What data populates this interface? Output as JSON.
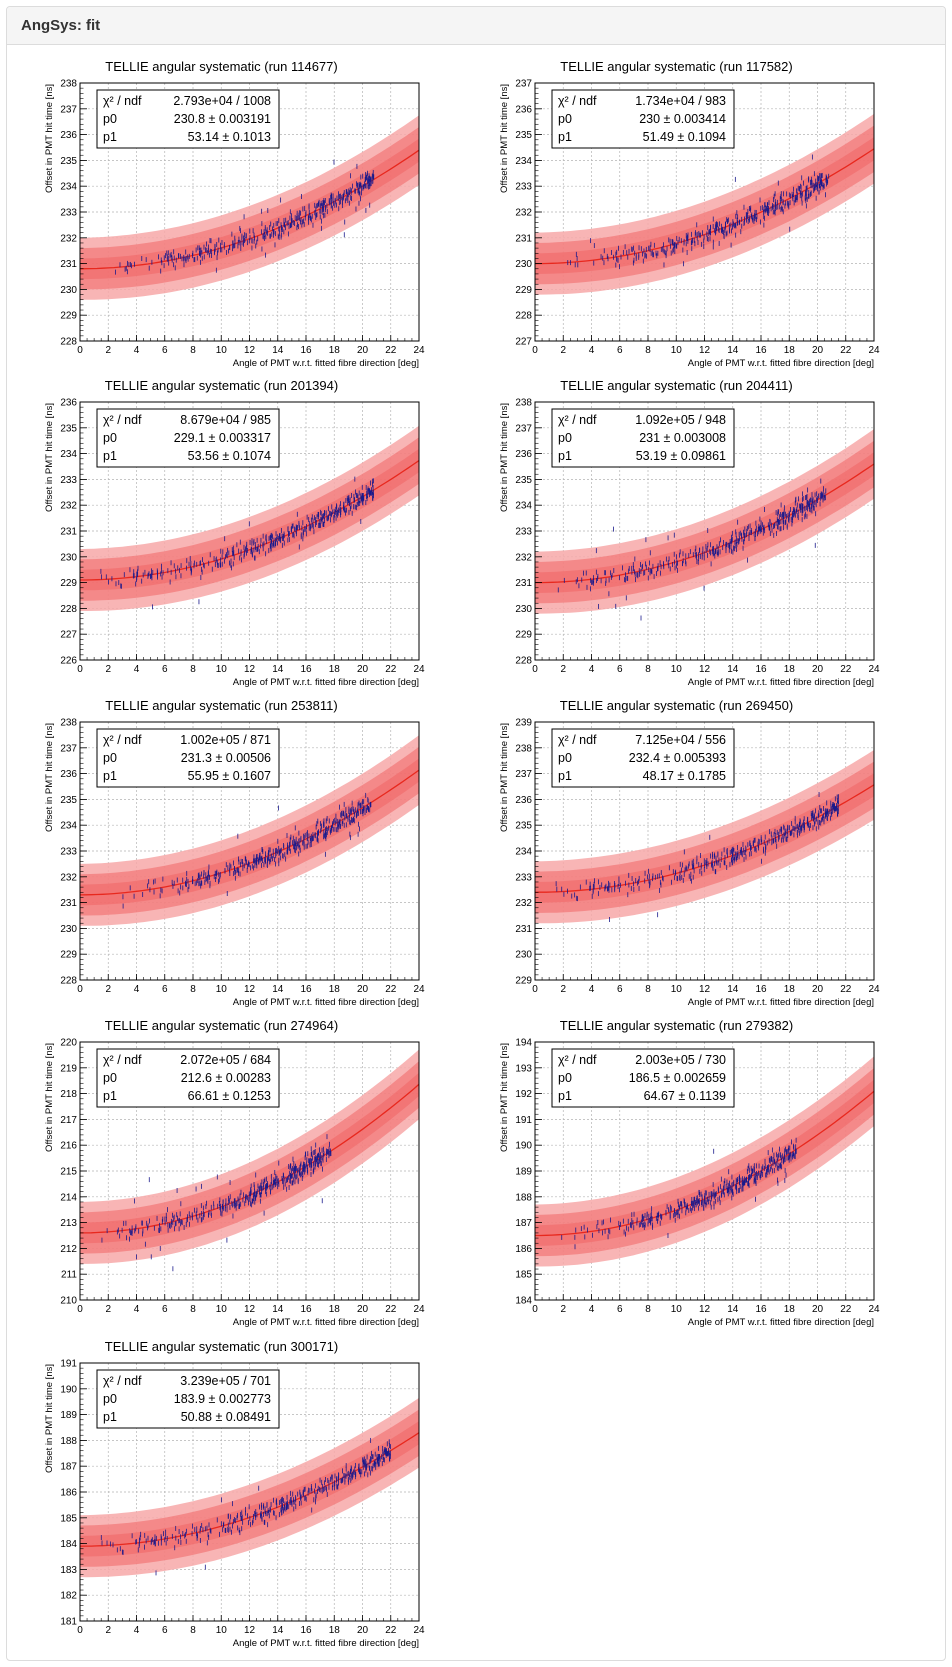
{
  "panel": {
    "title": "AngSys: fit"
  },
  "chart_data": [
    {
      "type": "scatter",
      "title": "TELLIE angular systematic (run 114677)",
      "xlabel": "Angle of PMT w.r.t. fitted fibre direction [deg]",
      "ylabel": "Offset in PMT hit time [ns]",
      "xlim": [
        0,
        24
      ],
      "ylim": [
        228,
        238
      ],
      "xticks": [
        0,
        2,
        4,
        6,
        8,
        10,
        12,
        14,
        16,
        18,
        20,
        22,
        24
      ],
      "yticks": [
        228,
        229,
        230,
        231,
        232,
        233,
        234,
        235,
        236,
        237,
        238
      ],
      "grid": true,
      "legend_position": "top-left",
      "stats": {
        "chi2_label": "χ² / ndf",
        "chi2_value": "2.793e+04 / 1008",
        "p0_label": "p0",
        "p0_value": "230.8 ± 0.003191",
        "p1_label": "p1",
        "p1_value": "53.14 ± 0.1013"
      },
      "fit": {
        "p0": 230.8,
        "p1": 53.14
      },
      "x_data_max": 20.8
    },
    {
      "type": "scatter",
      "title": "TELLIE angular systematic (run 117582)",
      "xlabel": "Angle of PMT w.r.t. fitted fibre direction [deg]",
      "ylabel": "Offset in PMT hit time [ns]",
      "xlim": [
        0,
        24
      ],
      "ylim": [
        227,
        237
      ],
      "xticks": [
        0,
        2,
        4,
        6,
        8,
        10,
        12,
        14,
        16,
        18,
        20,
        22,
        24
      ],
      "yticks": [
        227,
        228,
        229,
        230,
        231,
        232,
        233,
        234,
        235,
        236,
        237
      ],
      "grid": true,
      "legend_position": "top-left",
      "stats": {
        "chi2_label": "χ² / ndf",
        "chi2_value": "1.734e+04 / 983",
        "p0_label": "p0",
        "p0_value": "230 ± 0.003414",
        "p1_label": "p1",
        "p1_value": "51.49 ± 0.1094"
      },
      "fit": {
        "p0": 230,
        "p1": 51.49
      },
      "x_data_max": 20.8
    },
    {
      "type": "scatter",
      "title": "TELLIE angular systematic (run 201394)",
      "xlabel": "Angle of PMT w.r.t. fitted fibre direction [deg]",
      "ylabel": "Offset in PMT hit time [ns]",
      "xlim": [
        0,
        24
      ],
      "ylim": [
        226,
        236
      ],
      "xticks": [
        0,
        2,
        4,
        6,
        8,
        10,
        12,
        14,
        16,
        18,
        20,
        22,
        24
      ],
      "yticks": [
        226,
        227,
        228,
        229,
        230,
        231,
        232,
        233,
        234,
        235,
        236
      ],
      "grid": true,
      "legend_position": "top-left",
      "stats": {
        "chi2_label": "χ² / ndf",
        "chi2_value": "8.679e+04 / 985",
        "p0_label": "p0",
        "p0_value": "229.1 ± 0.003317",
        "p1_label": "p1",
        "p1_value": "53.56 ± 0.1074"
      },
      "fit": {
        "p0": 229.1,
        "p1": 53.56
      },
      "x_data_max": 20.8
    },
    {
      "type": "scatter",
      "title": "TELLIE angular systematic (run 204411)",
      "xlabel": "Angle of PMT w.r.t. fitted fibre direction [deg]",
      "ylabel": "Offset in PMT hit time [ns]",
      "xlim": [
        0,
        24
      ],
      "ylim": [
        228,
        238
      ],
      "xticks": [
        0,
        2,
        4,
        6,
        8,
        10,
        12,
        14,
        16,
        18,
        20,
        22,
        24
      ],
      "yticks": [
        228,
        229,
        230,
        231,
        232,
        233,
        234,
        235,
        236,
        237,
        238
      ],
      "grid": true,
      "legend_position": "top-left",
      "stats": {
        "chi2_label": "χ² / ndf",
        "chi2_value": "1.092e+05 / 948",
        "p0_label": "p0",
        "p0_value": "231 ± 0.003008",
        "p1_label": "p1",
        "p1_value": "53.19 ± 0.09861"
      },
      "fit": {
        "p0": 231,
        "p1": 53.19
      },
      "x_data_max": 20.6
    },
    {
      "type": "scatter",
      "title": "TELLIE angular systematic (run 253811)",
      "xlabel": "Angle of PMT w.r.t. fitted fibre direction [deg]",
      "ylabel": "Offset in PMT hit time [ns]",
      "xlim": [
        0,
        24
      ],
      "ylim": [
        228,
        238
      ],
      "xticks": [
        0,
        2,
        4,
        6,
        8,
        10,
        12,
        14,
        16,
        18,
        20,
        22,
        24
      ],
      "yticks": [
        228,
        229,
        230,
        231,
        232,
        233,
        234,
        235,
        236,
        237,
        238
      ],
      "grid": true,
      "legend_position": "top-left",
      "stats": {
        "chi2_label": "χ² / ndf",
        "chi2_value": "1.002e+05 / 871",
        "p0_label": "p0",
        "p0_value": "231.3 ± 0.00506",
        "p1_label": "p1",
        "p1_value": "55.95 ± 0.1607"
      },
      "fit": {
        "p0": 231.3,
        "p1": 55.95
      },
      "x_data_max": 20.6
    },
    {
      "type": "scatter",
      "title": "TELLIE angular systematic (run 269450)",
      "xlabel": "Angle of PMT w.r.t. fitted fibre direction [deg]",
      "ylabel": "Offset in PMT hit time [ns]",
      "xlim": [
        0,
        24
      ],
      "ylim": [
        229,
        239
      ],
      "xticks": [
        0,
        2,
        4,
        6,
        8,
        10,
        12,
        14,
        16,
        18,
        20,
        22,
        24
      ],
      "yticks": [
        229,
        230,
        231,
        232,
        233,
        234,
        235,
        236,
        237,
        238,
        239
      ],
      "grid": true,
      "legend_position": "top-left",
      "stats": {
        "chi2_label": "χ² / ndf",
        "chi2_value": "7.125e+04 / 556",
        "p0_label": "p0",
        "p0_value": "232.4 ± 0.005393",
        "p1_label": "p1",
        "p1_value": "48.17 ± 0.1785"
      },
      "fit": {
        "p0": 232.4,
        "p1": 48.17
      },
      "x_data_max": 21.5
    },
    {
      "type": "scatter",
      "title": "TELLIE angular systematic (run 274964)",
      "xlabel": "Angle of PMT w.r.t. fitted fibre direction [deg]",
      "ylabel": "Offset in PMT hit time [ns]",
      "xlim": [
        0,
        24
      ],
      "ylim": [
        210,
        220
      ],
      "xticks": [
        0,
        2,
        4,
        6,
        8,
        10,
        12,
        14,
        16,
        18,
        20,
        22,
        24
      ],
      "yticks": [
        210,
        211,
        212,
        213,
        214,
        215,
        216,
        217,
        218,
        219,
        220
      ],
      "grid": true,
      "legend_position": "top-left",
      "stats": {
        "chi2_label": "χ² / ndf",
        "chi2_value": "2.072e+05 / 684",
        "p0_label": "p0",
        "p0_value": "212.6 ± 0.00283",
        "p1_label": "p1",
        "p1_value": "66.61 ± 0.1253"
      },
      "fit": {
        "p0": 212.6,
        "p1": 66.61
      },
      "x_data_max": 17.8
    },
    {
      "type": "scatter",
      "title": "TELLIE angular systematic (run 279382)",
      "xlabel": "Angle of PMT w.r.t. fitted fibre direction [deg]",
      "ylabel": "Offset in PMT hit time [ns]",
      "xlim": [
        0,
        24
      ],
      "ylim": [
        184,
        194
      ],
      "xticks": [
        0,
        2,
        4,
        6,
        8,
        10,
        12,
        14,
        16,
        18,
        20,
        22,
        24
      ],
      "yticks": [
        184,
        185,
        186,
        187,
        188,
        189,
        190,
        191,
        192,
        193,
        194
      ],
      "grid": true,
      "legend_position": "top-left",
      "stats": {
        "chi2_label": "χ² / ndf",
        "chi2_value": "2.003e+05 / 730",
        "p0_label": "p0",
        "p0_value": "186.5 ± 0.002659",
        "p1_label": "p1",
        "p1_value": "64.67 ± 0.1139"
      },
      "fit": {
        "p0": 186.5,
        "p1": 64.67
      },
      "x_data_max": 18.5
    },
    {
      "type": "scatter",
      "title": "TELLIE angular systematic (run 300171)",
      "xlabel": "Angle of PMT w.r.t. fitted fibre direction [deg]",
      "ylabel": "Offset in PMT hit time [ns]",
      "xlim": [
        0,
        24
      ],
      "ylim": [
        181,
        191
      ],
      "xticks": [
        0,
        2,
        4,
        6,
        8,
        10,
        12,
        14,
        16,
        18,
        20,
        22,
        24
      ],
      "yticks": [
        181,
        182,
        183,
        184,
        185,
        186,
        187,
        188,
        189,
        190,
        191
      ],
      "grid": true,
      "legend_position": "top-left",
      "stats": {
        "chi2_label": "χ² / ndf",
        "chi2_value": "3.239e+05 / 701",
        "p0_label": "p0",
        "p0_value": "183.9 ± 0.002773",
        "p1_label": "p1",
        "p1_value": "50.88 ± 0.08491"
      },
      "fit": {
        "p0": 183.9,
        "p1": 50.88
      },
      "x_data_max": 22.0
    }
  ],
  "colors": {
    "fit_line": "#e8281e",
    "band_inner": "#f06464",
    "band_outer": "#f7a8a8",
    "points": "#1a1a8c",
    "grid": "#b4b4b4",
    "heading_bg": "#f5f5f5"
  }
}
